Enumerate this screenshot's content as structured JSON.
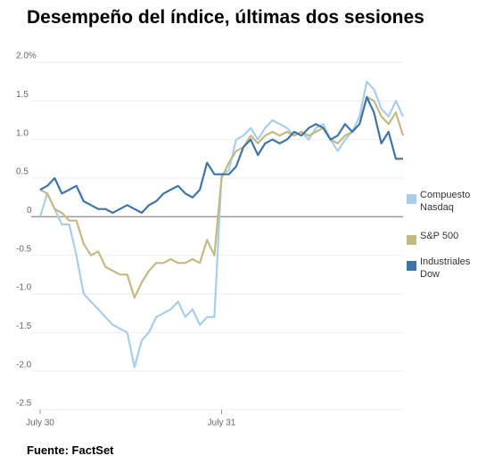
{
  "chart_data": {
    "type": "line",
    "title": "Desempeño del índice, últimas dos sesiones",
    "source": "Fuente: FactSet",
    "x": [
      0,
      2,
      4,
      6,
      8,
      10,
      12,
      14,
      16,
      18,
      20,
      22,
      24,
      26,
      28,
      30,
      32,
      34,
      36,
      38,
      40,
      42,
      44,
      46,
      48,
      50,
      52,
      54,
      56,
      58,
      60,
      62,
      64,
      66,
      68,
      70,
      72,
      74,
      76,
      78,
      80,
      82,
      84,
      86,
      88,
      90,
      92,
      94,
      96,
      98,
      100
    ],
    "xlim": [
      0,
      100
    ],
    "xticks": [
      {
        "value": 0,
        "label": "July 30"
      },
      {
        "value": 50,
        "label": "July 31"
      }
    ],
    "ylim": [
      -2.5,
      2.0
    ],
    "yticks": [
      {
        "value": 2.0,
        "label": "2.0%"
      },
      1.5,
      {
        "value": 1.0,
        "label": "1.0"
      },
      0.5,
      0,
      -0.5,
      {
        "value": -1.0,
        "label": "-1.0"
      },
      -1.5,
      {
        "value": -2.0,
        "label": "-2.0"
      },
      -2.5
    ],
    "grid": true,
    "legend": "right",
    "series": [
      {
        "name": "Compuesto Nasdaq",
        "color": "#a9cdea",
        "values": [
          0.0,
          0.3,
          0.1,
          -0.1,
          -0.1,
          -0.5,
          -1.0,
          -1.1,
          -1.2,
          -1.3,
          -1.4,
          -1.45,
          -1.5,
          -1.95,
          -1.6,
          -1.5,
          -1.3,
          -1.25,
          -1.2,
          -1.1,
          -1.3,
          -1.2,
          -1.4,
          -1.3,
          -1.3,
          0.55,
          0.6,
          1.0,
          1.05,
          1.15,
          1.0,
          1.15,
          1.25,
          1.2,
          1.15,
          1.05,
          1.1,
          1.0,
          1.15,
          1.2,
          1.0,
          0.85,
          1.0,
          1.1,
          1.3,
          1.75,
          1.65,
          1.4,
          1.3,
          1.5,
          1.3
        ]
      },
      {
        "name": "S&P 500",
        "color": "#c3b983",
        "values": [
          0.35,
          0.3,
          0.1,
          0.05,
          -0.05,
          -0.05,
          -0.35,
          -0.5,
          -0.45,
          -0.65,
          -0.7,
          -0.75,
          -0.75,
          -1.05,
          -0.85,
          -0.7,
          -0.6,
          -0.6,
          -0.55,
          -0.6,
          -0.6,
          -0.55,
          -0.6,
          -0.3,
          -0.5,
          0.5,
          0.7,
          0.85,
          0.9,
          1.05,
          0.95,
          1.05,
          1.1,
          1.05,
          1.1,
          1.05,
          1.1,
          1.05,
          1.1,
          1.15,
          1.0,
          0.95,
          1.05,
          1.1,
          1.2,
          1.55,
          1.5,
          1.3,
          1.2,
          1.35,
          1.05
        ]
      },
      {
        "name": "Industriales Dow",
        "color": "#3f74a9",
        "values": [
          0.35,
          0.4,
          0.5,
          0.3,
          0.35,
          0.4,
          0.2,
          0.15,
          0.1,
          0.1,
          0.05,
          0.1,
          0.15,
          0.1,
          0.05,
          0.15,
          0.2,
          0.3,
          0.35,
          0.4,
          0.3,
          0.25,
          0.35,
          0.7,
          0.55,
          0.55,
          0.55,
          0.65,
          0.9,
          1.0,
          0.8,
          0.95,
          1.0,
          0.95,
          1.0,
          1.1,
          1.05,
          1.15,
          1.2,
          1.15,
          1.0,
          1.05,
          1.2,
          1.1,
          1.2,
          1.55,
          1.35,
          0.95,
          1.1,
          0.75,
          0.75
        ]
      }
    ]
  }
}
